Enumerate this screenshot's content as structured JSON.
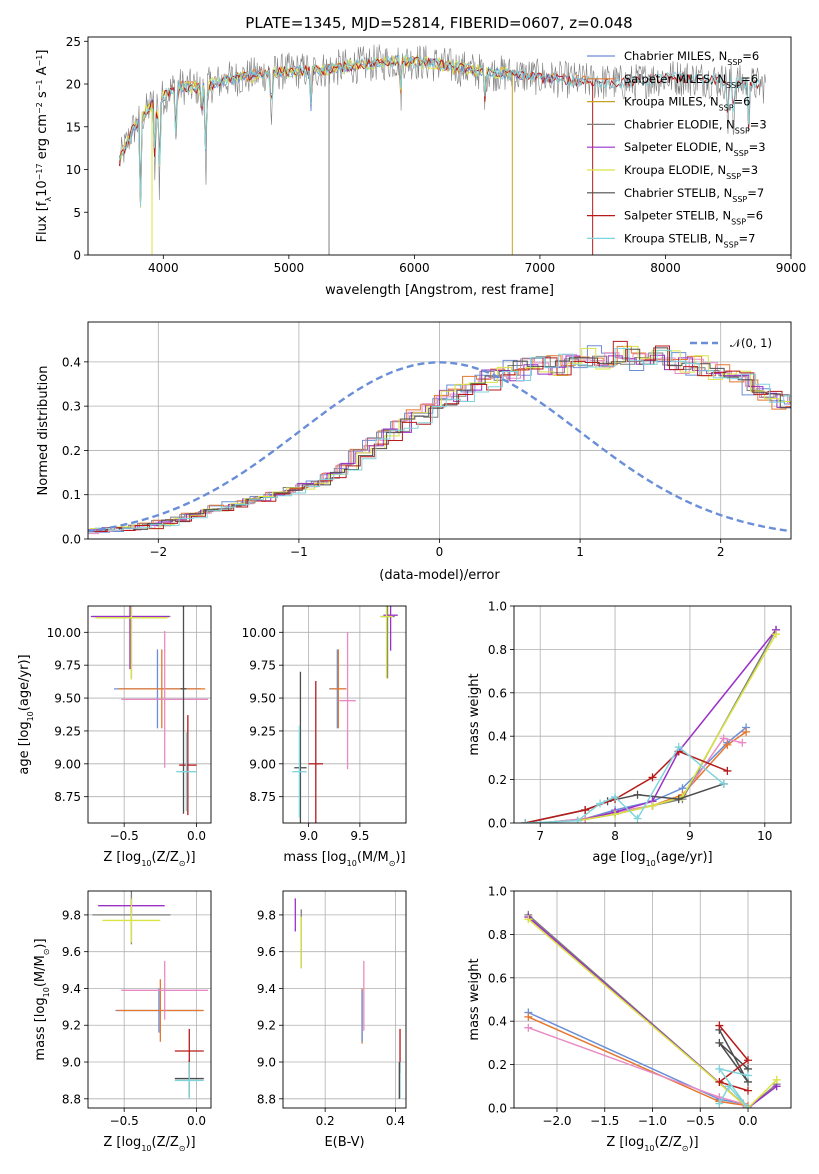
{
  "colors": {
    "chabrier_miles": "#6a8fd8",
    "salpeter_miles": "#e5772f",
    "kroupa_miles": "#c8a222",
    "chabrier_elodie": "#7f7f7f",
    "salpeter_elodie": "#9b30c8",
    "kroupa_elodie": "#d9e342",
    "chabrier_stelib": "#4d4d4d",
    "salpeter_stelib": "#b81a1a",
    "kroupa_stelib": "#7fd4dc",
    "pink": "#e88bc4",
    "normal_curve": "#6a8fd8",
    "grid": "#b0b0b0"
  },
  "chart_data": [
    {
      "id": "spectrum",
      "type": "line",
      "title": "PLATE=1345, MJD=52814, FIBERID=0607, z=0.048",
      "xlabel": "wavelength [Angstrom, rest frame]",
      "ylabel": "Flux [f_λ10⁻¹⁷ erg cm⁻² s⁻¹ A⁻¹]",
      "xlim": [
        3400,
        9000
      ],
      "ylim": [
        0,
        25.5
      ],
      "xticks": [
        "4000",
        "5000",
        "6000",
        "7000",
        "8000",
        "9000"
      ],
      "yticks": [
        "0",
        "5",
        "10",
        "15",
        "20",
        "25"
      ],
      "grid": false,
      "legend_position": "top-right",
      "legend": [
        {
          "label": "Chabrier MILES, N_SSP=6",
          "color": "#6a8fd8"
        },
        {
          "label": "Salpeter MILES, N_SSP=6",
          "color": "#e5772f"
        },
        {
          "label": "Kroupa MILES, N_SSP=6",
          "color": "#c8a222"
        },
        {
          "label": "Chabrier ELODIE, N_SSP=3",
          "color": "#7f7f7f"
        },
        {
          "label": "Salpeter ELODIE, N_SSP=3",
          "color": "#9b30c8"
        },
        {
          "label": "Kroupa ELODIE, N_SSP=3",
          "color": "#d9e342"
        },
        {
          "label": "Chabrier STELIB, N_SSP=7",
          "color": "#4d4d4d"
        },
        {
          "label": "Salpeter STELIB, N_SSP=6",
          "color": "#b81a1a"
        },
        {
          "label": "Kroupa STELIB, N_SSP=7",
          "color": "#7fd4dc"
        }
      ],
      "continuum": {
        "x": [
          3650,
          3750,
          3900,
          4000,
          4100,
          4300,
          4500,
          4800,
          5000,
          5300,
          5600,
          5900,
          6200,
          6500,
          6800,
          7100,
          7400,
          7700,
          8000,
          8300,
          8600,
          8800
        ],
        "y": [
          11.0,
          14.5,
          17.5,
          18.5,
          19.8,
          19.5,
          20.5,
          21.2,
          21.5,
          21.7,
          22.3,
          22.8,
          22.3,
          21.5,
          21.1,
          20.6,
          20.3,
          20.1,
          20.8,
          20.6,
          20.1,
          19.8
        ]
      },
      "absorption_dips": [
        {
          "x": 3820,
          "y": 4.0
        },
        {
          "x": 3934,
          "y": 9.0
        },
        {
          "x": 3968,
          "y": 7.5
        },
        {
          "x": 4102,
          "y": 12.0
        },
        {
          "x": 4305,
          "y": 16.0
        },
        {
          "x": 4340,
          "y": 9.0
        },
        {
          "x": 4861,
          "y": 15.0
        },
        {
          "x": 5175,
          "y": 17.0
        },
        {
          "x": 5893,
          "y": 18.5
        },
        {
          "x": 6563,
          "y": 18.2
        },
        {
          "x": 8498,
          "y": 14.5
        },
        {
          "x": 8542,
          "y": 14.0
        },
        {
          "x": 8662,
          "y": 14.8
        }
      ],
      "masked_pixels": [
        {
          "x": 3910,
          "series": "Kroupa ELODIE"
        },
        {
          "x": 5320,
          "series": "Chabrier ELODIE"
        },
        {
          "x": 6780,
          "series": "Kroupa MILES"
        },
        {
          "x": 7420,
          "series": "Salpeter STELIB"
        }
      ]
    },
    {
      "id": "residuals",
      "type": "line",
      "xlabel": "(data-model)/error",
      "ylabel": "Normed distribution",
      "xlim": [
        -2.5,
        2.5
      ],
      "ylim": [
        0,
        0.49
      ],
      "xticks": [
        "−2",
        "−1",
        "0",
        "1",
        "2"
      ],
      "yticks": [
        "0.0",
        "0.1",
        "0.2",
        "0.3",
        "0.4"
      ],
      "grid": true,
      "legend_position": "top-right",
      "legend": [
        {
          "label": "𝒩(0, 1)",
          "style": "dashed"
        }
      ],
      "normal_curve": {
        "mean": 0,
        "sigma": 1
      },
      "histogram_bin_width": 0.1,
      "histogram_mean_heights": [
        0.018,
        0.02,
        0.022,
        0.025,
        0.03,
        0.036,
        0.044,
        0.052,
        0.062,
        0.07,
        0.078,
        0.085,
        0.092,
        0.1,
        0.11,
        0.12,
        0.13,
        0.145,
        0.165,
        0.19,
        0.215,
        0.235,
        0.255,
        0.275,
        0.29,
        0.315,
        0.33,
        0.345,
        0.36,
        0.37,
        0.38,
        0.385,
        0.39,
        0.395,
        0.4,
        0.405,
        0.41,
        0.42,
        0.415,
        0.4,
        0.41,
        0.4,
        0.395,
        0.39,
        0.38,
        0.37,
        0.36,
        0.345,
        0.33,
        0.31,
        0.29,
        0.27,
        0.25,
        0.225,
        0.2,
        0.18,
        0.16,
        0.14,
        0.12,
        0.1,
        0.09,
        0.08,
        0.075,
        0.068,
        0.06,
        0.055,
        0.05,
        0.045,
        0.04,
        0.035
      ]
    },
    {
      "id": "age_vs_Z",
      "type": "scatter",
      "xlabel": "Z [log₁₀(Z/Z☉)]",
      "ylabel": "age  [log₁₀(age/yr)]",
      "xlim": [
        -0.75,
        0.1
      ],
      "ylim": [
        8.55,
        10.2
      ],
      "xticks": [
        "−0.5",
        "0.0"
      ],
      "yticks": [
        "8.75",
        "9.00",
        "9.25",
        "9.50",
        "9.75",
        "10.00"
      ],
      "grid": true,
      "points": [
        {
          "series": "Chabrier ELODIE",
          "x": -0.45,
          "xerr": 0.27,
          "y": 10.12,
          "yerr": 0.47
        },
        {
          "series": "Salpeter ELODIE",
          "x": -0.46,
          "xerr": 0.27,
          "y": 10.12,
          "yerr": 0.4
        },
        {
          "series": "Kroupa ELODIE",
          "x": -0.45,
          "xerr": 0.25,
          "y": 10.11,
          "yerr": 0.47
        },
        {
          "series": "Chabrier MILES",
          "x": -0.27,
          "xerr": 0.3,
          "y": 9.57,
          "yerr": 0.3
        },
        {
          "series": "Salpeter MILES",
          "x": -0.24,
          "xerr": 0.3,
          "y": 9.57,
          "yerr": 0.3
        },
        {
          "series": "pink",
          "x": -0.22,
          "xerr": 0.3,
          "y": 9.49,
          "yerr": 0.52
        },
        {
          "series": "Chabrier STELIB",
          "x": -0.09,
          "xerr": 0.02,
          "y": 9.57,
          "yerr": 0.95
        },
        {
          "series": "Salpeter STELIB",
          "x": -0.06,
          "xerr": 0.06,
          "y": 8.99,
          "yerr": 0.38
        },
        {
          "series": "Kroupa STELIB",
          "x": -0.07,
          "xerr": 0.07,
          "y": 8.94,
          "yerr": 0.3
        }
      ]
    },
    {
      "id": "age_vs_mass",
      "type": "scatter",
      "xlabel": "mass [log₁₀(M/M☉)]",
      "ylabel": "",
      "xlim": [
        8.75,
        9.95
      ],
      "ylim": [
        8.55,
        10.2
      ],
      "xticks": [
        "9.0",
        "9.5"
      ],
      "yticks": [
        "8.75",
        "9.00",
        "9.25",
        "9.50",
        "9.75",
        "10.00"
      ],
      "grid": true,
      "points": [
        {
          "series": "Chabrier ELODIE",
          "x": 9.77,
          "xerr": 0.07,
          "y": 10.12,
          "yerr": 0.47
        },
        {
          "series": "Salpeter ELODIE",
          "x": 9.8,
          "xerr": 0.07,
          "y": 10.13,
          "yerr": 0.27
        },
        {
          "series": "Kroupa ELODIE",
          "x": 9.76,
          "xerr": 0.06,
          "y": 10.12,
          "yerr": 0.47
        },
        {
          "series": "Chabrier MILES",
          "x": 9.28,
          "xerr": 0.08,
          "y": 9.57,
          "yerr": 0.3
        },
        {
          "series": "Salpeter MILES",
          "x": 9.29,
          "xerr": 0.08,
          "y": 9.57,
          "yerr": 0.3
        },
        {
          "series": "pink",
          "x": 9.38,
          "xerr": 0.08,
          "y": 9.48,
          "yerr": 0.52
        },
        {
          "series": "Chabrier STELIB",
          "x": 8.92,
          "xerr": 0.06,
          "y": 8.97,
          "yerr": 0.73
        },
        {
          "series": "Salpeter STELIB",
          "x": 9.07,
          "xerr": 0.07,
          "y": 9.0,
          "yerr": 0.63
        },
        {
          "series": "Kroupa STELIB",
          "x": 8.91,
          "xerr": 0.07,
          "y": 8.94,
          "yerr": 0.35
        }
      ]
    },
    {
      "id": "weight_vs_age",
      "type": "line",
      "xlabel": "age  [log₁₀(age/yr)]",
      "ylabel": "mass weight",
      "xlim": [
        6.65,
        10.35
      ],
      "ylim": [
        0,
        1.0
      ],
      "xticks": [
        "7",
        "8",
        "9",
        "10"
      ],
      "yticks": [
        "0.0",
        "0.2",
        "0.4",
        "0.6",
        "0.8",
        "1.0"
      ],
      "grid": true,
      "series": [
        {
          "name": "Chabrier MILES",
          "x": [
            7.0,
            7.6,
            8.0,
            8.5,
            8.9,
            9.5,
            9.75
          ],
          "y": [
            0.0,
            0.02,
            0.06,
            0.1,
            0.16,
            0.37,
            0.44
          ]
        },
        {
          "name": "Salpeter MILES",
          "x": [
            7.0,
            7.6,
            8.0,
            8.5,
            8.9,
            9.5,
            9.75
          ],
          "y": [
            0.0,
            0.02,
            0.05,
            0.08,
            0.13,
            0.36,
            0.42
          ]
        },
        {
          "name": "pink",
          "x": [
            7.0,
            7.6,
            8.0,
            8.5,
            8.9,
            9.45,
            9.7
          ],
          "y": [
            0.0,
            0.02,
            0.05,
            0.08,
            0.12,
            0.39,
            0.37
          ]
        },
        {
          "name": "Chabrier ELODIE",
          "x": [
            7.5,
            8.0,
            8.5,
            8.9,
            10.15
          ],
          "y": [
            0.01,
            0.04,
            0.08,
            0.11,
            0.89
          ]
        },
        {
          "name": "Salpeter ELODIE",
          "x": [
            7.5,
            8.0,
            8.5,
            8.85,
            10.15
          ],
          "y": [
            0.01,
            0.05,
            0.1,
            0.33,
            0.89
          ]
        },
        {
          "name": "Kroupa ELODIE",
          "x": [
            7.5,
            8.0,
            8.5,
            8.9,
            10.15
          ],
          "y": [
            0.01,
            0.04,
            0.08,
            0.12,
            0.87
          ]
        },
        {
          "name": "Chabrier STELIB",
          "x": [
            6.8,
            7.6,
            7.9,
            8.3,
            8.85,
            9.45
          ],
          "y": [
            0.0,
            0.06,
            0.1,
            0.13,
            0.11,
            0.18
          ]
        },
        {
          "name": "Salpeter STELIB",
          "x": [
            6.8,
            7.6,
            8.0,
            8.5,
            8.85,
            9.5
          ],
          "y": [
            0.0,
            0.06,
            0.11,
            0.21,
            0.33,
            0.24
          ]
        },
        {
          "name": "Kroupa STELIB",
          "x": [
            6.8,
            7.5,
            7.8,
            8.0,
            8.3,
            8.85,
            9.45
          ],
          "y": [
            0.0,
            0.01,
            0.09,
            0.12,
            0.02,
            0.35,
            0.18
          ]
        }
      ]
    },
    {
      "id": "mass_vs_Z",
      "type": "scatter",
      "xlabel": "Z [log₁₀(Z/Z☉)]",
      "ylabel": "mass [log₁₀(M/M☉)]",
      "xlim": [
        -0.75,
        0.1
      ],
      "ylim": [
        8.75,
        9.93
      ],
      "xticks": [
        "−0.5",
        "0.0"
      ],
      "yticks": [
        "8.8",
        "9.0",
        "9.2",
        "9.4",
        "9.6",
        "9.8"
      ],
      "grid": true,
      "points": [
        {
          "series": "Chabrier ELODIE",
          "x": -0.45,
          "xerr": 0.27,
          "y": 9.8,
          "yerr": 0.16
        },
        {
          "series": "Salpeter ELODIE",
          "x": -0.45,
          "xerr": 0.23,
          "y": 9.85,
          "yerr": 0.04
        },
        {
          "series": "Kroupa ELODIE",
          "x": -0.45,
          "xerr": 0.2,
          "y": 9.77,
          "yerr": 0.12
        },
        {
          "series": "Chabrier MILES",
          "x": -0.26,
          "xerr": 0.3,
          "y": 9.28,
          "yerr": 0.12
        },
        {
          "series": "Salpeter MILES",
          "x": -0.25,
          "xerr": 0.3,
          "y": 9.28,
          "yerr": 0.17
        },
        {
          "series": "pink",
          "x": -0.22,
          "xerr": 0.3,
          "y": 9.39,
          "yerr": 0.16
        },
        {
          "series": "Chabrier STELIB",
          "x": -0.05,
          "xerr": 0.1,
          "y": 8.91,
          "yerr": 0.1
        },
        {
          "series": "Salpeter STELIB",
          "x": -0.05,
          "xerr": 0.1,
          "y": 9.06,
          "yerr": 0.12
        },
        {
          "series": "Kroupa STELIB",
          "x": -0.05,
          "xerr": 0.1,
          "y": 8.9,
          "yerr": 0.1
        }
      ]
    },
    {
      "id": "mass_vs_ebv",
      "type": "scatter",
      "xlabel": "E(B-V)",
      "ylabel": "",
      "xlim": [
        0.08,
        0.43
      ],
      "ylim": [
        8.75,
        9.93
      ],
      "xticks": [
        "0.2",
        "0.4"
      ],
      "yticks": [
        "8.8",
        "9.0",
        "9.2",
        "9.4",
        "9.6",
        "9.8"
      ],
      "grid": true,
      "points": [
        {
          "series": "Salpeter ELODIE",
          "x": 0.115,
          "y": 9.8,
          "yerr": 0.09
        },
        {
          "series": "Chabrier ELODIE",
          "x": 0.132,
          "y": 9.67,
          "yerr": 0.16
        },
        {
          "series": "Kroupa ELODIE",
          "x": 0.132,
          "y": 9.65,
          "yerr": 0.14
        },
        {
          "series": "pink",
          "x": 0.31,
          "y": 9.36,
          "yerr": 0.19
        },
        {
          "series": "Salpeter MILES",
          "x": 0.305,
          "y": 9.25,
          "yerr": 0.15
        },
        {
          "series": "Chabrier MILES",
          "x": 0.305,
          "y": 9.25,
          "yerr": 0.14
        },
        {
          "series": "Salpeter STELIB",
          "x": 0.413,
          "y": 9.06,
          "yerr": 0.12
        },
        {
          "series": "Kroupa STELIB",
          "x": 0.413,
          "y": 8.9,
          "yerr": 0.1
        },
        {
          "series": "Chabrier STELIB",
          "x": 0.411,
          "y": 8.9,
          "yerr": 0.1
        }
      ]
    },
    {
      "id": "weight_vs_Z",
      "type": "line",
      "xlabel": "Z [log₁₀(Z/Z☉)]",
      "ylabel": "mass weight",
      "xlim": [
        -2.45,
        0.45
      ],
      "ylim": [
        0,
        1.0
      ],
      "xticks": [
        "−2.0",
        "−1.5",
        "−1.0",
        "−0.5",
        "0.0"
      ],
      "yticks": [
        "0.0",
        "0.2",
        "0.4",
        "0.6",
        "0.8",
        "1.0"
      ],
      "grid": true,
      "series": [
        {
          "name": "Chabrier MILES",
          "x": [
            -2.3,
            -0.3,
            -0.05
          ],
          "y": [
            0.44,
            0.04,
            0.02
          ]
        },
        {
          "name": "Salpeter MILES",
          "x": [
            -2.3,
            -0.3,
            0.0
          ],
          "y": [
            0.42,
            0.03,
            0.01
          ]
        },
        {
          "name": "pink",
          "x": [
            -2.3,
            -0.3,
            -0.05
          ],
          "y": [
            0.37,
            0.05,
            0.02
          ]
        },
        {
          "name": "Chabrier ELODIE",
          "x": [
            -2.3,
            0.0,
            0.3
          ],
          "y": [
            0.89,
            0.0,
            0.11
          ]
        },
        {
          "name": "Salpeter ELODIE",
          "x": [
            -2.3,
            0.0,
            0.3
          ],
          "y": [
            0.88,
            0.0,
            0.1
          ]
        },
        {
          "name": "Kroupa ELODIE",
          "x": [
            -2.3,
            0.0,
            0.3
          ],
          "y": [
            0.87,
            0.0,
            0.13
          ]
        },
        {
          "name": "Chabrier STELIB",
          "x": [
            -0.3,
            0.0,
            -0.3,
            0.0
          ],
          "y": [
            0.36,
            0.12,
            0.3,
            0.18
          ]
        },
        {
          "name": "Salpeter STELIB",
          "x": [
            -0.3,
            0.0,
            -0.3,
            0.0
          ],
          "y": [
            0.38,
            0.22,
            0.12,
            0.08
          ]
        },
        {
          "name": "Kroupa STELIB",
          "x": [
            -0.3,
            -0.2,
            0.0,
            -0.3,
            0.0
          ],
          "y": [
            0.02,
            0.1,
            0.0,
            0.18,
            0.15
          ]
        }
      ]
    }
  ]
}
